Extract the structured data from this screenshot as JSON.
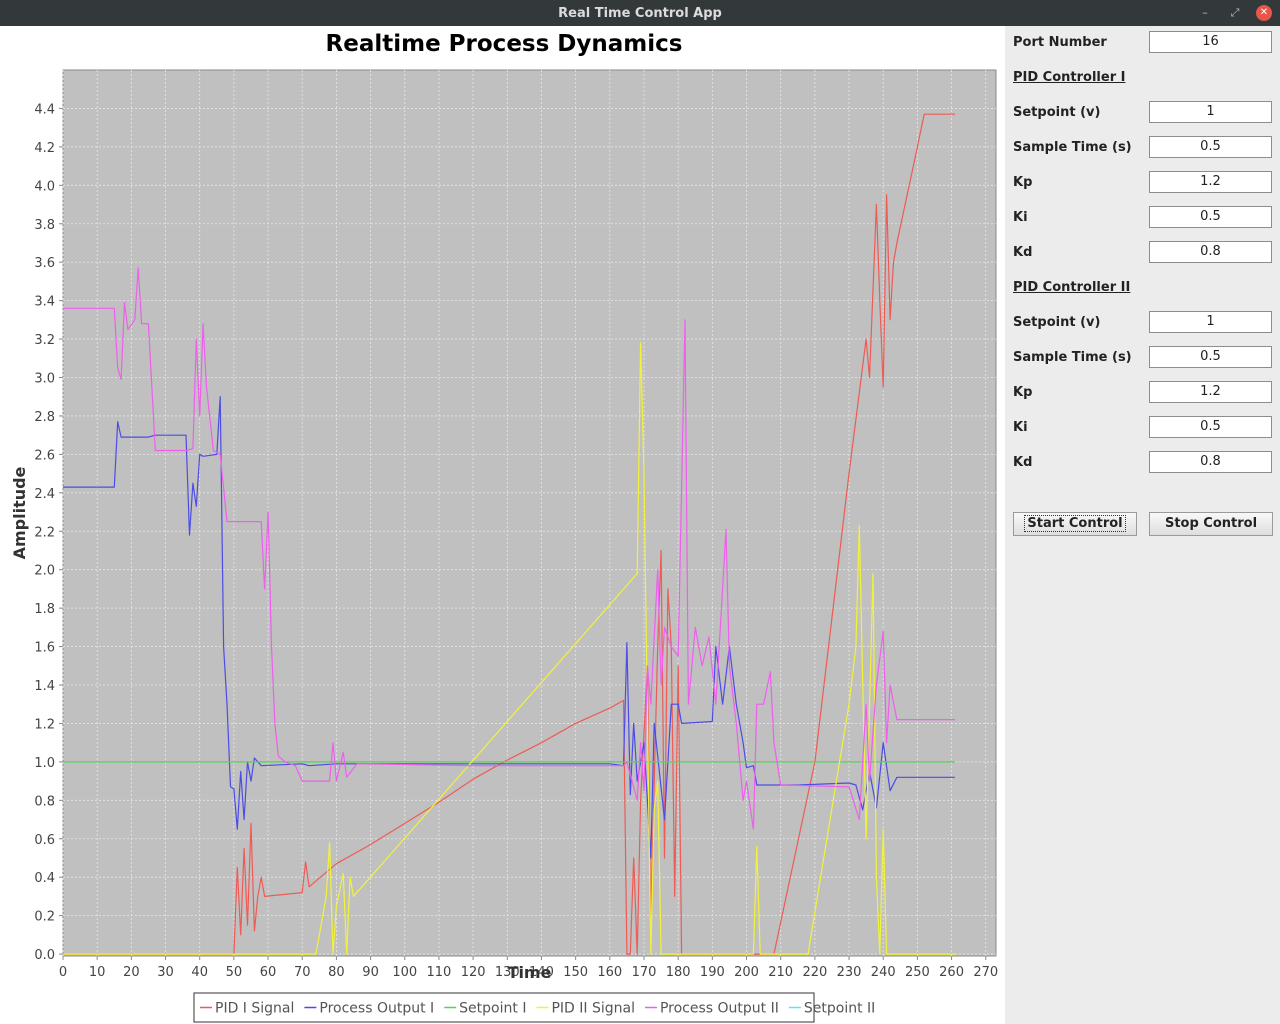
{
  "window": {
    "title": "Real Time Control App"
  },
  "form": {
    "port_label": "Port Number",
    "port_value": "16",
    "pid1": {
      "title": "PID Controller I",
      "setpoint_label": "Setpoint (v)",
      "setpoint": "1",
      "sample_label": "Sample Time (s)",
      "sample": "0.5",
      "kp_label": "Kp",
      "kp": "1.2",
      "ki_label": "Ki",
      "ki": "0.5",
      "kd_label": "Kd",
      "kd": "0.8"
    },
    "pid2": {
      "title": "PID Controller II",
      "setpoint_label": "Setpoint (v)",
      "setpoint": "1",
      "sample_label": "Sample Time (s)",
      "sample": "0.5",
      "kp_label": "Kp",
      "kp": "1.2",
      "ki_label": "Ki",
      "ki": "0.5",
      "kd_label": "Kd",
      "kd": "0.8"
    },
    "start_label": "Start Control",
    "stop_label": "Stop Control"
  },
  "chart_data": {
    "type": "line",
    "title": "Realtime Process Dynamics",
    "xlabel": "Time",
    "ylabel": "Amplitude",
    "xlim": [
      0,
      273
    ],
    "ylim": [
      -0.01,
      4.6
    ],
    "xticks": [
      0,
      10,
      20,
      30,
      40,
      50,
      60,
      70,
      80,
      90,
      100,
      110,
      120,
      130,
      140,
      150,
      160,
      170,
      180,
      190,
      200,
      210,
      220,
      230,
      240,
      250,
      260,
      270
    ],
    "yticks": [
      0.0,
      0.2,
      0.4,
      0.6,
      0.8,
      1.0,
      1.2,
      1.4,
      1.6,
      1.8,
      2.0,
      2.2,
      2.4,
      2.6,
      2.8,
      3.0,
      3.2,
      3.4,
      3.6,
      3.8,
      4.0,
      4.2,
      4.4
    ],
    "grid": true,
    "legend_position": "bottom",
    "series": [
      {
        "name": "PID I Signal",
        "color": "#ee5b55",
        "points": [
          [
            0,
            0
          ],
          [
            50,
            0
          ],
          [
            51,
            0.45
          ],
          [
            52,
            0.1
          ],
          [
            53,
            0.55
          ],
          [
            54,
            0.15
          ],
          [
            55,
            0.68
          ],
          [
            56,
            0.12
          ],
          [
            57,
            0.3
          ],
          [
            58,
            0.4
          ],
          [
            59,
            0.3
          ],
          [
            70,
            0.32
          ],
          [
            71,
            0.48
          ],
          [
            72,
            0.35
          ],
          [
            80,
            0.47
          ],
          [
            90,
            0.57
          ],
          [
            100,
            0.68
          ],
          [
            110,
            0.79
          ],
          [
            120,
            0.91
          ],
          [
            130,
            1.01
          ],
          [
            140,
            1.1
          ],
          [
            150,
            1.2
          ],
          [
            160,
            1.28
          ],
          [
            164,
            1.32
          ],
          [
            165,
            0
          ],
          [
            166,
            0
          ],
          [
            167,
            0.5
          ],
          [
            168,
            0
          ],
          [
            169,
            0.8
          ],
          [
            171,
            1.5
          ],
          [
            172,
            0.2
          ],
          [
            174,
            1.6
          ],
          [
            175,
            2.1
          ],
          [
            176,
            0.5
          ],
          [
            177,
            1.9
          ],
          [
            178,
            1.6
          ],
          [
            179,
            0.3
          ],
          [
            180,
            1.5
          ],
          [
            181,
            0
          ],
          [
            208,
            0
          ],
          [
            220,
            1.0
          ],
          [
            230,
            2.5
          ],
          [
            235,
            3.2
          ],
          [
            236,
            3.0
          ],
          [
            238,
            3.9
          ],
          [
            239,
            3.4
          ],
          [
            240,
            2.95
          ],
          [
            241,
            3.95
          ],
          [
            242,
            3.3
          ],
          [
            243,
            3.6
          ],
          [
            244,
            3.7
          ],
          [
            250,
            4.2
          ],
          [
            252,
            4.37
          ],
          [
            261,
            4.37
          ]
        ]
      },
      {
        "name": "Process Output I",
        "color": "#4c4ce6",
        "points": [
          [
            0,
            2.43
          ],
          [
            15,
            2.43
          ],
          [
            16,
            2.77
          ],
          [
            17,
            2.69
          ],
          [
            25,
            2.69
          ],
          [
            27,
            2.7
          ],
          [
            36,
            2.7
          ],
          [
            37,
            2.18
          ],
          [
            38,
            2.45
          ],
          [
            39,
            2.33
          ],
          [
            40,
            2.6
          ],
          [
            41,
            2.59
          ],
          [
            45,
            2.6
          ],
          [
            46,
            2.9
          ],
          [
            47,
            1.6
          ],
          [
            48,
            1.3
          ],
          [
            49,
            0.87
          ],
          [
            50,
            0.86
          ],
          [
            51,
            0.65
          ],
          [
            52,
            0.95
          ],
          [
            53,
            0.7
          ],
          [
            54,
            1.0
          ],
          [
            55,
            0.9
          ],
          [
            56,
            1.02
          ],
          [
            58,
            0.98
          ],
          [
            70,
            0.99
          ],
          [
            72,
            0.98
          ],
          [
            80,
            0.99
          ],
          [
            100,
            0.99
          ],
          [
            120,
            0.99
          ],
          [
            140,
            0.99
          ],
          [
            160,
            0.99
          ],
          [
            164,
            0.98
          ],
          [
            165,
            1.62
          ],
          [
            166,
            0.83
          ],
          [
            167,
            1.2
          ],
          [
            168,
            0.9
          ],
          [
            170,
            1.1
          ],
          [
            172,
            0.5
          ],
          [
            173,
            1.2
          ],
          [
            176,
            0.7
          ],
          [
            178,
            1.3
          ],
          [
            180,
            1.3
          ],
          [
            181,
            1.2
          ],
          [
            190,
            1.21
          ],
          [
            191,
            1.6
          ],
          [
            193,
            1.3
          ],
          [
            195,
            1.6
          ],
          [
            197,
            1.3
          ],
          [
            199,
            1.1
          ],
          [
            200,
            0.97
          ],
          [
            202,
            0.98
          ],
          [
            203,
            0.88
          ],
          [
            215,
            0.88
          ],
          [
            230,
            0.89
          ],
          [
            232,
            0.88
          ],
          [
            234,
            0.75
          ],
          [
            236,
            0.95
          ],
          [
            238,
            0.76
          ],
          [
            240,
            1.1
          ],
          [
            242,
            0.85
          ],
          [
            244,
            0.92
          ],
          [
            261,
            0.92
          ]
        ]
      },
      {
        "name": "Setpoint I",
        "color": "#54d654",
        "points": [
          [
            0,
            1
          ],
          [
            261,
            1
          ]
        ]
      },
      {
        "name": "PID II Signal",
        "color": "#f2f23b",
        "points": [
          [
            0,
            0
          ],
          [
            74,
            0
          ],
          [
            77,
            0.3
          ],
          [
            78,
            0.58
          ],
          [
            79,
            0
          ],
          [
            80,
            0.25
          ],
          [
            82,
            0.42
          ],
          [
            83,
            0
          ],
          [
            84,
            0.4
          ],
          [
            85,
            0.3
          ],
          [
            168,
            1.98
          ],
          [
            169,
            3.18
          ],
          [
            170,
            2.5
          ],
          [
            172,
            0
          ],
          [
            173,
            0.75
          ],
          [
            174,
            0.9
          ],
          [
            175,
            0
          ],
          [
            202,
            0
          ],
          [
            203,
            0.56
          ],
          [
            204,
            0
          ],
          [
            218,
            0
          ],
          [
            230,
            1.3
          ],
          [
            232,
            1.6
          ],
          [
            233,
            2.23
          ],
          [
            235,
            0.6
          ],
          [
            237,
            1.98
          ],
          [
            238,
            0.4
          ],
          [
            239,
            0
          ],
          [
            240,
            0.65
          ],
          [
            241,
            0
          ],
          [
            261,
            0
          ]
        ]
      },
      {
        "name": "Process Output II",
        "color": "#ee5fee",
        "points": [
          [
            0,
            3.36
          ],
          [
            15,
            3.36
          ],
          [
            16,
            3.05
          ],
          [
            17,
            2.99
          ],
          [
            18,
            3.39
          ],
          [
            19,
            3.25
          ],
          [
            21,
            3.3
          ],
          [
            22,
            3.57
          ],
          [
            23,
            3.28
          ],
          [
            25,
            3.28
          ],
          [
            27,
            2.62
          ],
          [
            36,
            2.62
          ],
          [
            38,
            2.63
          ],
          [
            39,
            3.2
          ],
          [
            40,
            2.8
          ],
          [
            41,
            3.28
          ],
          [
            42,
            2.95
          ],
          [
            44,
            2.62
          ],
          [
            46,
            2.6
          ],
          [
            48,
            2.25
          ],
          [
            58,
            2.25
          ],
          [
            59,
            1.9
          ],
          [
            60,
            2.3
          ],
          [
            61,
            1.6
          ],
          [
            62,
            1.2
          ],
          [
            63,
            1.03
          ],
          [
            65,
            1.0
          ],
          [
            68,
            0.98
          ],
          [
            70,
            0.9
          ],
          [
            78,
            0.9
          ],
          [
            79,
            1.1
          ],
          [
            80,
            0.9
          ],
          [
            82,
            1.05
          ],
          [
            83,
            0.92
          ],
          [
            86,
            0.99
          ],
          [
            120,
            0.98
          ],
          [
            160,
            0.98
          ],
          [
            164,
            0.98
          ],
          [
            165,
            1.0
          ],
          [
            168,
            0.8
          ],
          [
            169,
            1.1
          ],
          [
            170,
            0.85
          ],
          [
            171,
            1.5
          ],
          [
            172,
            1.3
          ],
          [
            174,
            2.0
          ],
          [
            175,
            1.4
          ],
          [
            176,
            1.7
          ],
          [
            178,
            1.6
          ],
          [
            180,
            1.55
          ],
          [
            182,
            3.3
          ],
          [
            183,
            1.3
          ],
          [
            185,
            1.7
          ],
          [
            187,
            1.5
          ],
          [
            189,
            1.65
          ],
          [
            191,
            1.3
          ],
          [
            193,
            1.9
          ],
          [
            194,
            2.21
          ],
          [
            195,
            1.5
          ],
          [
            197,
            1.2
          ],
          [
            199,
            0.8
          ],
          [
            200,
            0.9
          ],
          [
            202,
            0.65
          ],
          [
            203,
            1.3
          ],
          [
            205,
            1.3
          ],
          [
            207,
            1.47
          ],
          [
            208,
            1.1
          ],
          [
            210,
            0.88
          ],
          [
            230,
            0.87
          ],
          [
            233,
            0.7
          ],
          [
            235,
            1.3
          ],
          [
            236,
            0.9
          ],
          [
            238,
            1.4
          ],
          [
            240,
            1.68
          ],
          [
            241,
            1.1
          ],
          [
            242,
            1.4
          ],
          [
            244,
            1.22
          ],
          [
            261,
            1.22
          ]
        ]
      },
      {
        "name": "Setpoint II",
        "color": "#5fe3f0",
        "points": []
      }
    ]
  }
}
